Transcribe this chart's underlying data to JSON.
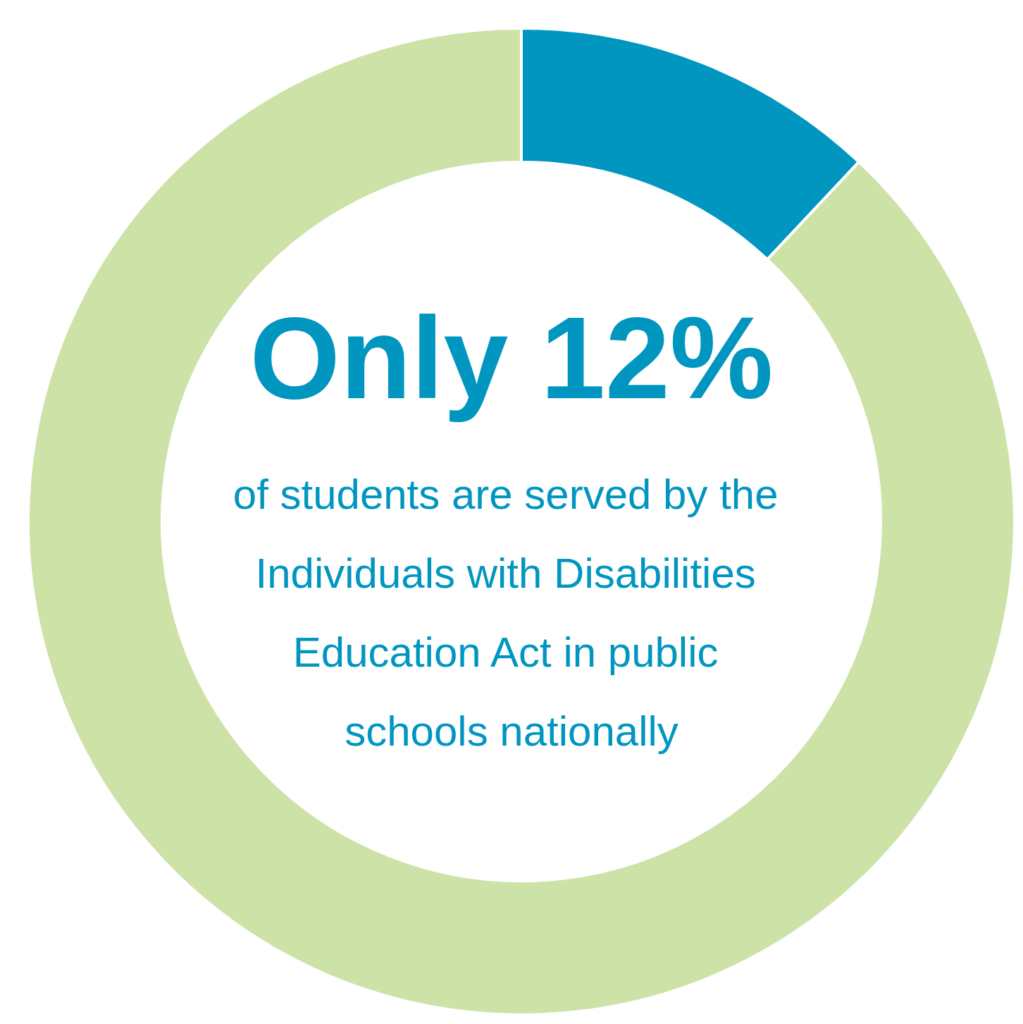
{
  "chart_data": {
    "type": "donut",
    "title": "Only 12%",
    "subtitle": "of students are served by the Individuals with Disabilities Education Act in public schools nationally",
    "categories": [
      null,
      null
    ],
    "values": [
      12,
      88
    ],
    "colors": [
      "#0096c0",
      "#cde2a7"
    ]
  }
}
